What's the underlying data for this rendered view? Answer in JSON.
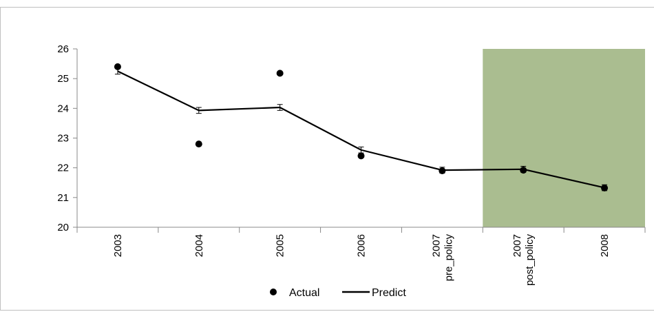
{
  "chart_data": {
    "type": "line",
    "categories": [
      [
        "2003"
      ],
      [
        "2004"
      ],
      [
        "2005"
      ],
      [
        "2006"
      ],
      [
        "2007",
        "pre_policy"
      ],
      [
        "2007",
        "post_policy"
      ],
      [
        "2008"
      ]
    ],
    "series": [
      {
        "name": "Actual",
        "kind": "scatter",
        "values": [
          25.4,
          22.8,
          25.18,
          22.4,
          21.9,
          21.92,
          21.32
        ]
      },
      {
        "name": "Predict",
        "kind": "line",
        "values": [
          25.25,
          23.93,
          24.03,
          22.6,
          21.92,
          21.95,
          21.33
        ],
        "error": [
          0.1,
          0.1,
          0.1,
          0.1,
          0.1,
          0.1,
          0.1
        ]
      }
    ],
    "ylim": [
      20,
      26
    ],
    "yticks": [
      "20",
      "21",
      "22",
      "23",
      "24",
      "25",
      "26"
    ],
    "highlight": {
      "from_category": 5,
      "to_category": 6,
      "color": "#9bb27d",
      "opacity": 0.85
    },
    "legend": {
      "position": "bottom"
    },
    "grid": false,
    "colors": {
      "axis": "#888888",
      "series": "#000000"
    }
  }
}
